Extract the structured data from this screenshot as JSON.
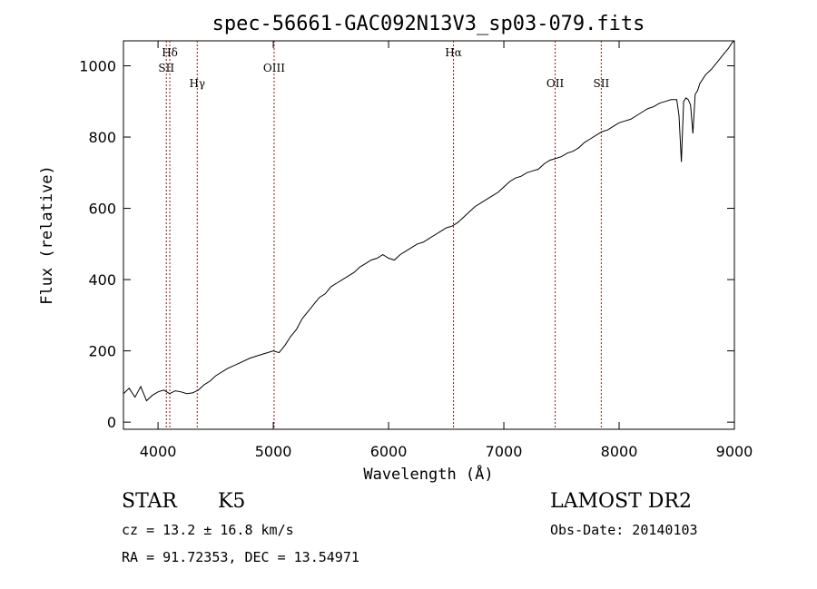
{
  "chart_data": {
    "type": "line",
    "title": "spec-56661-GAC092N13V3_sp03-079.fits",
    "xlabel": "Wavelength (Å)",
    "ylabel": "Flux (relative)",
    "xlim": [
      3700,
      9000
    ],
    "ylim": [
      -20,
      1070
    ],
    "xticks": [
      4000,
      5000,
      6000,
      7000,
      8000,
      9000
    ],
    "yticks": [
      0,
      200,
      400,
      600,
      800,
      1000
    ],
    "grid": false,
    "line_color": "#000000",
    "line_marker_color": "#8b1a1a",
    "series": [
      {
        "x": [
          3700,
          3750,
          3800,
          3850,
          3900,
          3950,
          4000,
          4050,
          4100,
          4150,
          4200,
          4250,
          4300,
          4350,
          4400,
          4450,
          4500,
          4600,
          4700,
          4800,
          4900,
          5000,
          5050,
          5100,
          5150,
          5200,
          5250,
          5300,
          5350,
          5400,
          5450,
          5500,
          5550,
          5600,
          5650,
          5700,
          5750,
          5800,
          5850,
          5900,
          5950,
          6000,
          6050,
          6100,
          6150,
          6200,
          6250,
          6300,
          6350,
          6400,
          6450,
          6500,
          6550,
          6600,
          6650,
          6700,
          6750,
          6800,
          6850,
          6900,
          6950,
          7000,
          7050,
          7100,
          7150,
          7200,
          7250,
          7300,
          7350,
          7400,
          7450,
          7500,
          7550,
          7600,
          7650,
          7700,
          7750,
          7800,
          7850,
          7900,
          7950,
          8000,
          8050,
          8100,
          8150,
          8200,
          8250,
          8300,
          8350,
          8400,
          8450,
          8500,
          8520,
          8540,
          8560,
          8580,
          8600,
          8620,
          8640,
          8660,
          8680,
          8700,
          8750,
          8800,
          8850,
          8900,
          8950,
          8980,
          9000
        ],
        "y": [
          80,
          95,
          70,
          100,
          60,
          75,
          85,
          90,
          80,
          88,
          85,
          80,
          82,
          90,
          105,
          115,
          130,
          150,
          165,
          180,
          190,
          200,
          195,
          215,
          240,
          260,
          290,
          310,
          330,
          350,
          360,
          380,
          390,
          400,
          410,
          420,
          435,
          445,
          455,
          460,
          470,
          460,
          455,
          470,
          480,
          490,
          500,
          505,
          515,
          525,
          535,
          545,
          550,
          560,
          575,
          590,
          605,
          615,
          625,
          635,
          645,
          660,
          675,
          685,
          690,
          700,
          705,
          710,
          725,
          735,
          740,
          745,
          755,
          760,
          770,
          785,
          795,
          805,
          815,
          820,
          830,
          840,
          845,
          850,
          860,
          870,
          880,
          885,
          895,
          900,
          905,
          905,
          860,
          730,
          900,
          910,
          905,
          890,
          810,
          920,
          930,
          950,
          975,
          990,
          1010,
          1030,
          1050,
          1065,
          1070
        ]
      }
    ],
    "annotations": [
      {
        "label": "Hδ",
        "x": 4102
      },
      {
        "label": "SII",
        "x": 4072
      },
      {
        "label": "Hγ",
        "x": 4340
      },
      {
        "label": "OIII",
        "x": 5007
      },
      {
        "label": "Hα",
        "x": 6563
      },
      {
        "label": "OII",
        "x": 7445
      },
      {
        "label": "SII",
        "x": 7845
      }
    ]
  },
  "info": {
    "class": "STAR",
    "subclass": "K5",
    "survey": "LAMOST DR2",
    "cz": "cz = 13.2 ± 16.8 km/s",
    "obs_date": "Obs-Date: 20140103",
    "radec": "RA =  91.72353, DEC =  13.54971"
  }
}
